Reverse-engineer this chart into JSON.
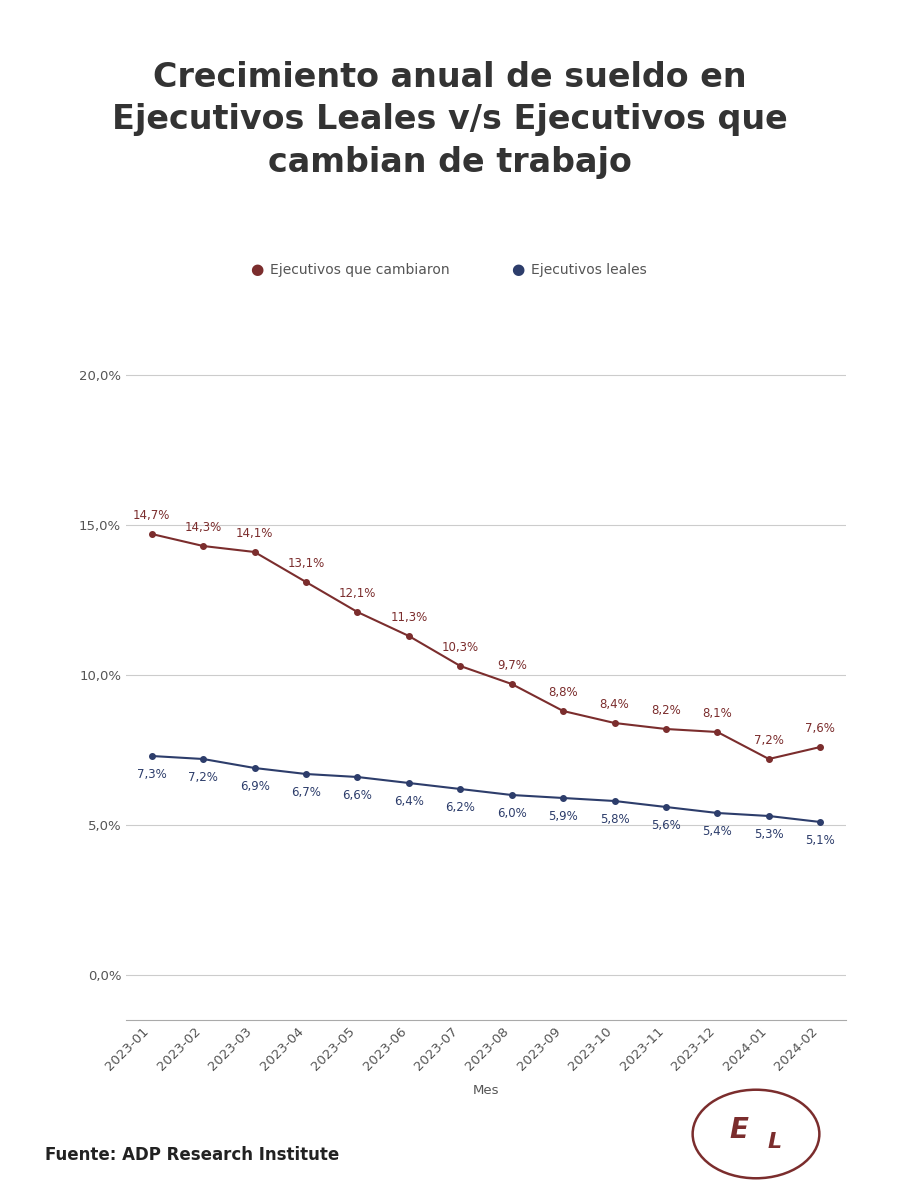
{
  "title": "Crecimiento anual de sueldo en\nEjecutivos Leales v/s Ejecutivos que\ncambian de trabajo",
  "xlabel": "Mes",
  "months": [
    "2023-01",
    "2023-02",
    "2023-03",
    "2023-04",
    "2023-05",
    "2023-06",
    "2023-07",
    "2023-08",
    "2023-09",
    "2023-10",
    "2023-11",
    "2023-12",
    "2024-01",
    "2024-02"
  ],
  "cambiaron": [
    14.7,
    14.3,
    14.1,
    13.1,
    12.1,
    11.3,
    10.3,
    9.7,
    8.8,
    8.4,
    8.2,
    8.1,
    7.2,
    7.6
  ],
  "leales": [
    7.3,
    7.2,
    6.9,
    6.7,
    6.6,
    6.4,
    6.2,
    6.0,
    5.9,
    5.8,
    5.6,
    5.4,
    5.3,
    5.1
  ],
  "cambiaron_labels": [
    "14,7%",
    "14,3%",
    "14,1%",
    "13,1%",
    "12,1%",
    "11,3%",
    "10,3%",
    "9,7%",
    "8,8%",
    "8,4%",
    "8,2%",
    "8,1%",
    "7,2%",
    "7,6%"
  ],
  "leales_labels": [
    "7,3%",
    "7,2%",
    "6,9%",
    "6,7%",
    "6,6%",
    "6,4%",
    "6,2%",
    "6,0%",
    "5,9%",
    "5,8%",
    "5,6%",
    "5,4%",
    "5,3%",
    "5,1%"
  ],
  "color_cambiaron": "#7B2D2D",
  "color_leales": "#2D3D6B",
  "yticks": [
    0.0,
    5.0,
    10.0,
    15.0,
    20.0
  ],
  "ytick_labels": [
    "0,0%",
    "5,0%",
    "10,0%",
    "15,0%",
    "20,0%"
  ],
  "ylim": [
    -1.5,
    22.5
  ],
  "background_color": "#FFFFFF",
  "legend_label_cambiaron": "Ejecutivos que cambiaron",
  "legend_label_leales": "Ejecutivos leales",
  "source_text": "Fuente: ADP Research Institute",
  "title_fontsize": 24,
  "label_fontsize": 8.5,
  "axis_fontsize": 9.5,
  "legend_fontsize": 10,
  "source_fontsize": 12
}
